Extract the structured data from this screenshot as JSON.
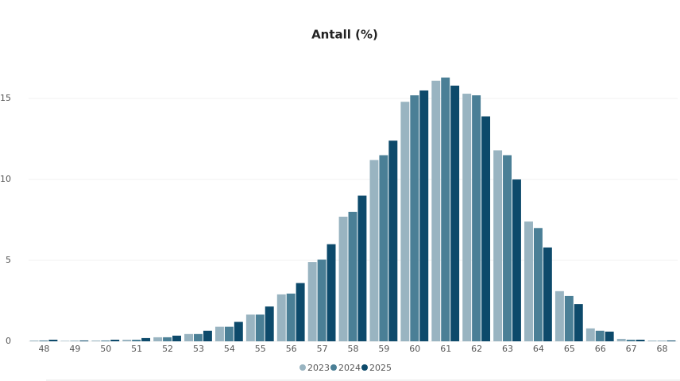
{
  "chart_data": {
    "type": "bar",
    "title": "Antall (%)",
    "categories": [
      "48",
      "49",
      "50",
      "51",
      "52",
      "53",
      "54",
      "55",
      "56",
      "57",
      "58",
      "59",
      "60",
      "61",
      "62",
      "63",
      "64",
      "65",
      "66",
      "67",
      "68"
    ],
    "series": [
      {
        "name": "2023",
        "color": "#99b4c1",
        "values": [
          0.05,
          0.03,
          0.05,
          0.1,
          0.25,
          0.45,
          0.9,
          1.65,
          2.9,
          4.9,
          7.7,
          11.2,
          14.8,
          16.1,
          15.3,
          11.8,
          7.4,
          3.1,
          0.8,
          0.15,
          0.05
        ]
      },
      {
        "name": "2024",
        "color": "#4a7f96",
        "values": [
          0.05,
          0.03,
          0.05,
          0.1,
          0.25,
          0.45,
          0.9,
          1.65,
          2.95,
          5.05,
          8.0,
          11.5,
          15.2,
          16.3,
          15.2,
          11.5,
          7.0,
          2.8,
          0.65,
          0.1,
          0.03
        ]
      },
      {
        "name": "2025",
        "color": "#0d4a6b",
        "values": [
          0.1,
          0.05,
          0.1,
          0.2,
          0.35,
          0.65,
          1.2,
          2.15,
          3.6,
          6.0,
          9.0,
          12.4,
          15.5,
          15.8,
          13.9,
          10.0,
          5.8,
          2.3,
          0.6,
          0.1,
          0.05
        ]
      }
    ],
    "ylim": [
      0,
      18
    ],
    "yticks": [
      0,
      5,
      10,
      15
    ],
    "grid": true
  }
}
